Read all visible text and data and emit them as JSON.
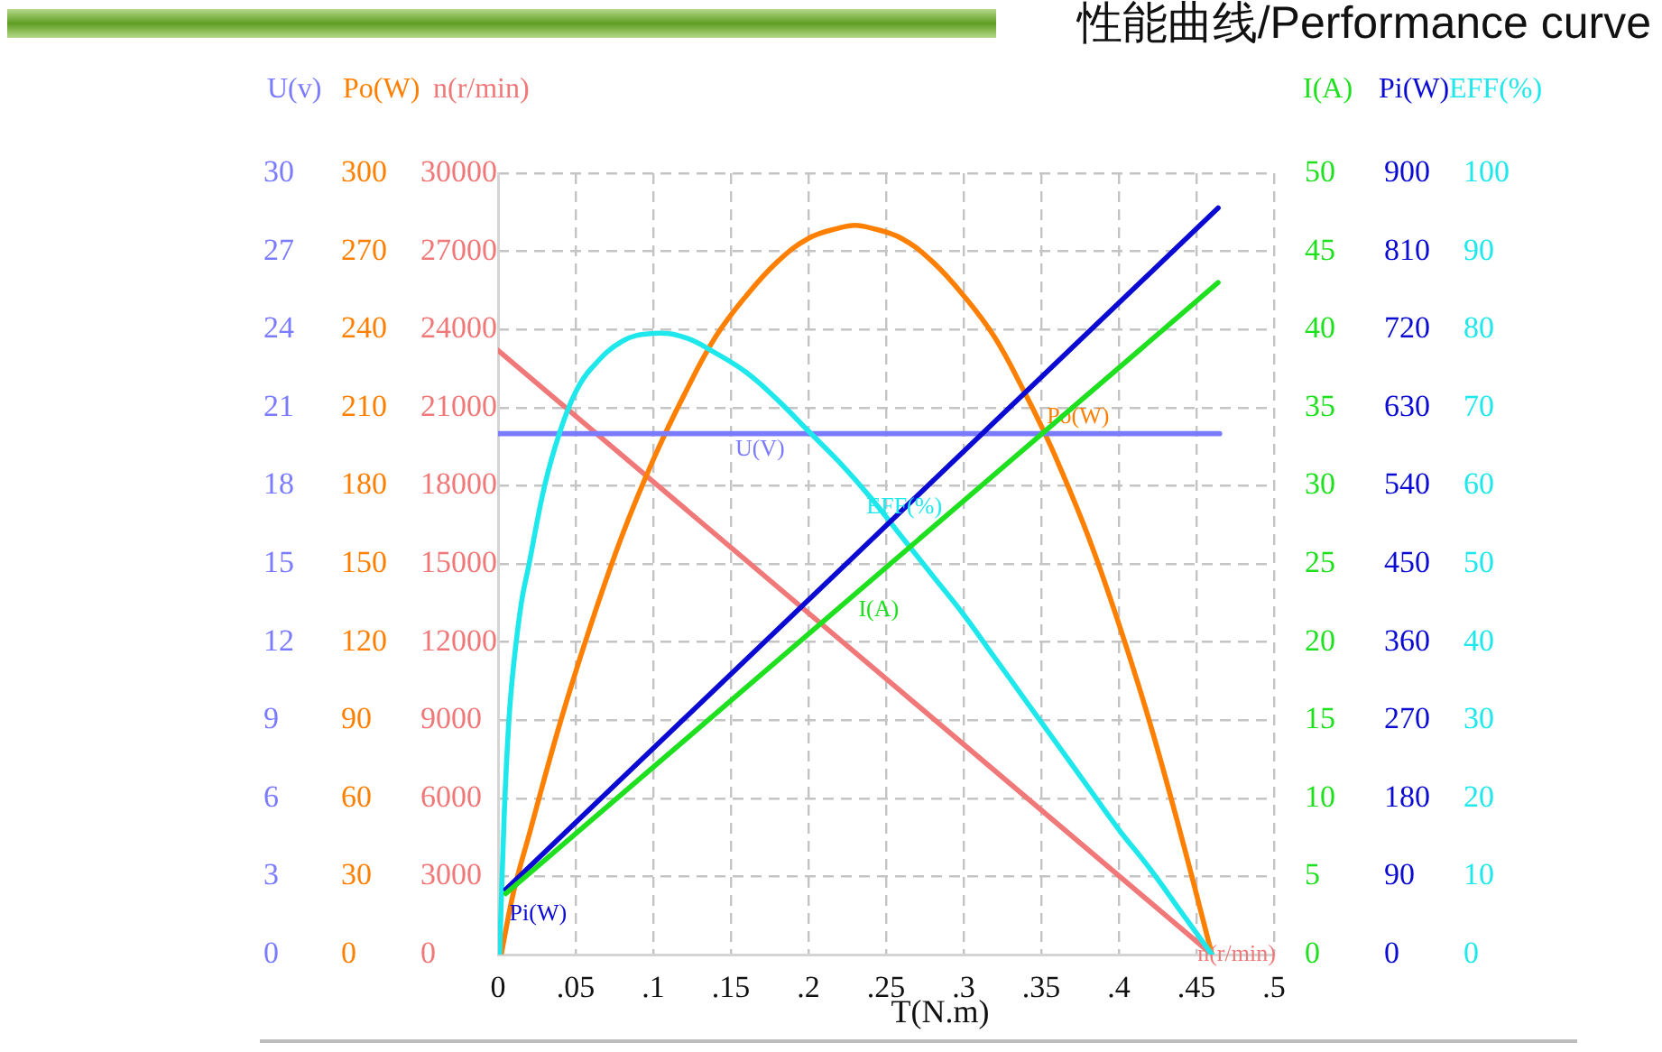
{
  "chart_data": [
    {
      "type": "line",
      "title": "性能曲线/Performance curve",
      "xlabel": "T(N.m)",
      "ylabel": "U(v)",
      "y2label": "Po(W)",
      "y3label": "n(r/min)",
      "xlim": [
        0,
        0.5
      ],
      "xticks": [
        0,
        {
          "value": 0.05,
          "label": ".05"
        },
        {
          "value": 0.1,
          "label": ".1"
        },
        {
          "value": 0.15,
          "label": ".15"
        },
        {
          "value": 0.2,
          "label": ".2"
        },
        {
          "value": 0.25,
          "label": ".25"
        },
        {
          "value": 0.3,
          "label": ".3"
        },
        {
          "value": 0.35,
          "label": ".35"
        },
        {
          "value": 0.4,
          "label": ".4"
        },
        {
          "value": 0.45,
          "label": ".45"
        },
        {
          "value": 0.5,
          "label": ".5"
        }
      ],
      "ylim": [
        0,
        30
      ],
      "yticks": [
        0,
        3,
        6,
        9,
        12,
        15,
        18,
        21,
        24,
        27,
        30
      ],
      "y2lim": [
        0,
        300
      ],
      "y2ticks": [
        0,
        30,
        60,
        90,
        120,
        150,
        180,
        210,
        240,
        270,
        300
      ],
      "y3lim": [
        0,
        30000
      ],
      "y3ticks": [
        0,
        3000,
        6000,
        9000,
        12000,
        15000,
        18000,
        21000,
        24000,
        27000,
        30000
      ],
      "grid": true,
      "series": [
        {
          "name": "U(V)",
          "color": "#7b7bff",
          "x": [
            0,
            0.465
          ],
          "values": [
            20,
            20
          ]
        },
        {
          "name": "Po(W)",
          "color": "#ff8000",
          "axis": "y2",
          "x": [
            0.002,
            0.01,
            0.02,
            0.04,
            0.06,
            0.08,
            0.1,
            0.12,
            0.14,
            0.16,
            0.18,
            0.2,
            0.22,
            0.23,
            0.24,
            0.26,
            0.28,
            0.3,
            0.32,
            0.34,
            0.35,
            0.36,
            0.38,
            0.4,
            0.42,
            0.44,
            0.46
          ],
          "values": [
            0,
            24,
            46,
            89,
            127,
            161,
            190,
            215,
            237,
            253,
            266,
            275,
            279,
            280,
            279,
            275,
            266,
            253,
            237,
            215,
            203,
            190,
            161,
            127,
            89,
            46,
            0
          ]
        },
        {
          "name": "n(r/min)",
          "color": "#f07878",
          "axis": "y3",
          "x": [
            0,
            0.46
          ],
          "values": [
            23200,
            0
          ]
        }
      ]
    },
    {
      "type": "line",
      "ylabel": "I(A)",
      "y2label": "Pi(W)",
      "y3label": "EFF(%)",
      "xlim": [
        0,
        0.5
      ],
      "tick_labels": "y",
      "ylim": [
        0,
        50
      ],
      "yticks": [
        0,
        5,
        10,
        15,
        20,
        25,
        30,
        35,
        40,
        45,
        50
      ],
      "y2lim": [
        0,
        900
      ],
      "y2ticks": [
        0,
        90,
        180,
        270,
        360,
        450,
        540,
        630,
        720,
        810,
        900
      ],
      "y3lim": [
        0,
        100
      ],
      "y3ticks": [
        0,
        10,
        20,
        30,
        40,
        50,
        60,
        70,
        80,
        90,
        100
      ],
      "series": [
        {
          "name": "I(A)",
          "color": "#1ee01e",
          "x": [
            0.005,
            0.464
          ],
          "values": [
            3.9,
            43
          ]
        },
        {
          "name": "Pi(W)",
          "color": "#0a0ad2",
          "axis": "y2",
          "x": [
            0.005,
            0.464
          ],
          "values": [
            75,
            860
          ]
        },
        {
          "name": "EFF(%)",
          "color": "#1ee8ec",
          "axis": "y3",
          "x": [
            0.001,
            0.004,
            0.007,
            0.01,
            0.015,
            0.02,
            0.03,
            0.04,
            0.05,
            0.06,
            0.08,
            0.1,
            0.12,
            0.14,
            0.16,
            0.18,
            0.2,
            0.22,
            0.24,
            0.26,
            0.28,
            0.3,
            0.32,
            0.34,
            0.36,
            0.38,
            0.4,
            0.42,
            0.44,
            0.46
          ],
          "values": [
            0,
            18,
            30,
            37,
            45,
            50,
            60,
            67,
            72,
            75,
            78.5,
            79.5,
            79,
            77,
            74.5,
            71,
            67,
            63,
            58.5,
            53.5,
            48.5,
            43.5,
            38,
            32.5,
            27,
            21.5,
            16,
            11,
            5.5,
            0
          ]
        }
      ]
    }
  ]
}
